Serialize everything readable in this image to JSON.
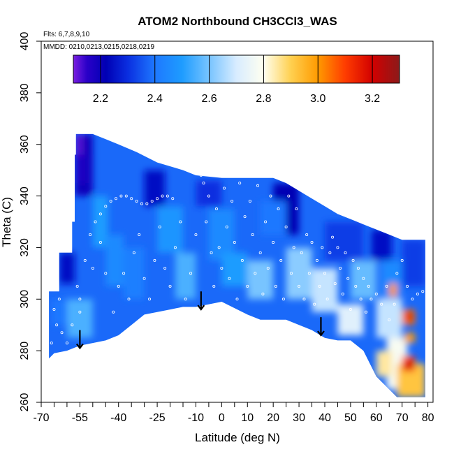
{
  "chart_data": {
    "type": "heatmap",
    "title": "ATOM2 Northbound CH3CCl3_WAS",
    "flights_label": "Flts: 6,7,8,9,10",
    "dates_label": "MMDD: 0210,0213,0215,0218,0219",
    "xlabel": "Latitude (deg N)",
    "ylabel": "Theta (C)",
    "xlim": [
      -70,
      82
    ],
    "ylim": [
      260,
      400
    ],
    "x_tick_labels": [
      "-70",
      "-55",
      "-40",
      "-25",
      "-10",
      "0",
      "10",
      "20",
      "30",
      "40",
      "50",
      "60",
      "70",
      "80"
    ],
    "x_tick_values": [
      -70,
      -55,
      -40,
      -25,
      -10,
      0,
      10,
      20,
      30,
      40,
      50,
      60,
      70,
      80
    ],
    "x_minor_ticks": [
      -65,
      -60,
      -50,
      -45,
      -35,
      -30,
      -20,
      -15,
      -5,
      5,
      15,
      25,
      35,
      45,
      55,
      65,
      75
    ],
    "y_tick_labels": [
      "260",
      "280",
      "300",
      "320",
      "340",
      "360",
      "380",
      "400"
    ],
    "y_tick_values": [
      260,
      280,
      300,
      320,
      340,
      360,
      380,
      400
    ],
    "colorbar": {
      "range": [
        2.1,
        3.3
      ],
      "tick_labels": [
        "2.2",
        "2.4",
        "2.6",
        "2.8",
        "3.0",
        "3.2"
      ],
      "tick_values": [
        2.2,
        2.4,
        2.6,
        2.8,
        3.0,
        3.2
      ],
      "divider_values": [
        2.2,
        2.4,
        2.6,
        2.8,
        3.0,
        3.2
      ],
      "color_stops": [
        {
          "v": 2.1,
          "c": "#7a1fe0"
        },
        {
          "v": 2.15,
          "c": "#2a00c8"
        },
        {
          "v": 2.22,
          "c": "#0000b4"
        },
        {
          "v": 2.3,
          "c": "#0a2ee0"
        },
        {
          "v": 2.4,
          "c": "#1e78ff"
        },
        {
          "v": 2.5,
          "c": "#1e9cff"
        },
        {
          "v": 2.6,
          "c": "#78c4ff"
        },
        {
          "v": 2.7,
          "c": "#d8ecff"
        },
        {
          "v": 2.8,
          "c": "#fffff0"
        },
        {
          "v": 2.9,
          "c": "#ffd050"
        },
        {
          "v": 3.0,
          "c": "#ff9a00"
        },
        {
          "v": 3.1,
          "c": "#ff3c00"
        },
        {
          "v": 3.2,
          "c": "#d20000"
        },
        {
          "v": 3.3,
          "c": "#8c1a1a"
        }
      ]
    },
    "field_boundary": {
      "top": [
        [
          -56.5,
          364
        ],
        [
          -50,
          364
        ],
        [
          -45,
          362
        ],
        [
          -40,
          360
        ],
        [
          -33,
          357
        ],
        [
          -25,
          353
        ],
        [
          -15,
          350
        ],
        [
          -10,
          348
        ],
        [
          0,
          347
        ],
        [
          10,
          347
        ],
        [
          20,
          347
        ],
        [
          25,
          345
        ],
        [
          30,
          342
        ],
        [
          35,
          339
        ],
        [
          40,
          336
        ],
        [
          45,
          333
        ],
        [
          50,
          331
        ],
        [
          55,
          329
        ],
        [
          60,
          327
        ],
        [
          65,
          325
        ],
        [
          70,
          323
        ],
        [
          77,
          323
        ],
        [
          79,
          323
        ]
      ],
      "bottom": [
        [
          79,
          262
        ],
        [
          74,
          262
        ],
        [
          68,
          262
        ],
        [
          60,
          270
        ],
        [
          55,
          280
        ],
        [
          50,
          284
        ],
        [
          45,
          284
        ],
        [
          40,
          285
        ],
        [
          35,
          288
        ],
        [
          30,
          290
        ],
        [
          25,
          292
        ],
        [
          15,
          292
        ],
        [
          10,
          294
        ],
        [
          0,
          299
        ],
        [
          -10,
          297
        ],
        [
          -15,
          297
        ],
        [
          -20,
          296
        ],
        [
          -25,
          295
        ],
        [
          -30,
          294
        ],
        [
          -35,
          290
        ],
        [
          -40,
          286
        ],
        [
          -45,
          284
        ],
        [
          -50,
          283
        ],
        [
          -55,
          282
        ],
        [
          -60,
          280
        ],
        [
          -65,
          279
        ],
        [
          -67,
          277
        ]
      ],
      "left_steps": [
        [
          -67,
          277
        ],
        [
          -67,
          303
        ],
        [
          -63,
          303
        ],
        [
          -63,
          318
        ],
        [
          -58,
          318
        ],
        [
          -58,
          330
        ],
        [
          -57,
          330
        ],
        [
          -57,
          356
        ],
        [
          -56.5,
          356
        ],
        [
          -56.5,
          364
        ]
      ]
    },
    "value_patches": [
      {
        "x0": -57,
        "x1": -50,
        "y0": 340,
        "y1": 364,
        "v": 2.2
      },
      {
        "x0": -56.5,
        "x1": -54,
        "y0": 355,
        "y1": 364,
        "v": 2.12
      },
      {
        "x0": -57,
        "x1": -52,
        "y0": 345,
        "y1": 356,
        "v": 2.17
      },
      {
        "x0": -63,
        "x1": -57,
        "y0": 306,
        "y1": 318,
        "v": 2.25
      },
      {
        "x0": -50,
        "x1": -44,
        "y0": 320,
        "y1": 340,
        "v": 2.5
      },
      {
        "x0": -45,
        "x1": -38,
        "y0": 305,
        "y1": 325,
        "v": 2.45
      },
      {
        "x0": -38,
        "x1": -30,
        "y0": 300,
        "y1": 320,
        "v": 2.42
      },
      {
        "x0": -30,
        "x1": -22,
        "y0": 336,
        "y1": 350,
        "v": 2.25
      },
      {
        "x0": -25,
        "x1": -15,
        "y0": 318,
        "y1": 336,
        "v": 2.48
      },
      {
        "x0": -18,
        "x1": -10,
        "y0": 300,
        "y1": 318,
        "v": 2.55
      },
      {
        "x0": -10,
        "x1": 0,
        "y0": 336,
        "y1": 346,
        "v": 2.3
      },
      {
        "x0": -5,
        "x1": 5,
        "y0": 315,
        "y1": 335,
        "v": 2.45
      },
      {
        "x0": 0,
        "x1": 10,
        "y0": 305,
        "y1": 318,
        "v": 2.5
      },
      {
        "x0": 10,
        "x1": 20,
        "y0": 300,
        "y1": 315,
        "v": 2.6
      },
      {
        "x0": 20,
        "x1": 30,
        "y0": 325,
        "y1": 345,
        "v": 2.22
      },
      {
        "x0": 25,
        "x1": 35,
        "y0": 300,
        "y1": 320,
        "v": 2.62
      },
      {
        "x0": 35,
        "x1": 45,
        "y0": 295,
        "y1": 312,
        "v": 2.68
      },
      {
        "x0": 40,
        "x1": 55,
        "y0": 315,
        "y1": 330,
        "v": 2.32
      },
      {
        "x0": 50,
        "x1": 60,
        "y0": 300,
        "y1": 315,
        "v": 2.58
      },
      {
        "x0": 58,
        "x1": 66,
        "y0": 315,
        "y1": 327,
        "v": 2.25
      },
      {
        "x0": 62,
        "x1": 70,
        "y0": 300,
        "y1": 315,
        "v": 2.45
      },
      {
        "x0": 70,
        "x1": 79,
        "y0": 305,
        "y1": 323,
        "v": 2.32
      },
      {
        "x0": 60,
        "x1": 70,
        "y0": 285,
        "y1": 300,
        "v": 2.68
      },
      {
        "x0": 64,
        "x1": 72,
        "y0": 265,
        "y1": 285,
        "v": 2.78
      },
      {
        "x0": 68,
        "x1": 79,
        "y0": 262,
        "y1": 275,
        "v": 2.92
      },
      {
        "x0": 60,
        "x1": 66,
        "y0": 270,
        "y1": 280,
        "v": 2.85
      },
      {
        "x0": 65,
        "x1": 68,
        "y0": 301,
        "y1": 306,
        "v": 3.0
      },
      {
        "x0": 70,
        "x1": 75,
        "y0": 290,
        "y1": 296,
        "v": 3.05
      },
      {
        "x0": 71,
        "x1": 74,
        "y0": 292,
        "y1": 294.5,
        "v": 3.2
      },
      {
        "x0": 71,
        "x1": 75,
        "y0": 283,
        "y1": 287,
        "v": 3.0
      },
      {
        "x0": 70,
        "x1": 75,
        "y0": 272,
        "y1": 278,
        "v": 3.1
      },
      {
        "x0": 71,
        "x1": 74,
        "y0": 273,
        "y1": 276,
        "v": 3.22
      },
      {
        "x0": -60,
        "x1": -50,
        "y0": 285,
        "y1": 300,
        "v": 2.55
      },
      {
        "x0": -66,
        "x1": -60,
        "y0": 290,
        "y1": 300,
        "v": 2.4
      },
      {
        "x0": 45,
        "x1": 55,
        "y0": 286,
        "y1": 298,
        "v": 2.72
      },
      {
        "x0": 15,
        "x1": 25,
        "y0": 325,
        "y1": 338,
        "v": 2.4
      }
    ],
    "sample_points": [
      [
        -65,
        296
      ],
      [
        -64,
        290
      ],
      [
        -62,
        287
      ],
      [
        -60,
        283
      ],
      [
        -58,
        290
      ],
      [
        -56,
        305
      ],
      [
        -55,
        300
      ],
      [
        -53,
        315
      ],
      [
        -51,
        325
      ],
      [
        -49,
        330
      ],
      [
        -47,
        333
      ],
      [
        -45,
        336
      ],
      [
        -43,
        338
      ],
      [
        -41,
        339
      ],
      [
        -39,
        340
      ],
      [
        -37,
        340
      ],
      [
        -35,
        339
      ],
      [
        -33,
        338
      ],
      [
        -31,
        337
      ],
      [
        -29,
        337
      ],
      [
        -27,
        338
      ],
      [
        -25,
        339
      ],
      [
        -23,
        340
      ],
      [
        -21,
        340
      ],
      [
        -19,
        339
      ],
      [
        -40,
        305
      ],
      [
        -38,
        310
      ],
      [
        -36,
        300
      ],
      [
        -34,
        318
      ],
      [
        -32,
        325
      ],
      [
        -30,
        308
      ],
      [
        -28,
        300
      ],
      [
        -26,
        315
      ],
      [
        -24,
        328
      ],
      [
        -22,
        312
      ],
      [
        -20,
        305
      ],
      [
        -18,
        320
      ],
      [
        -16,
        330
      ],
      [
        -14,
        300
      ],
      [
        -12,
        310
      ],
      [
        -10,
        325
      ],
      [
        -8,
        348
      ],
      [
        -7,
        345
      ],
      [
        -6,
        330
      ],
      [
        -5,
        340
      ],
      [
        -4,
        318
      ],
      [
        -3,
        305
      ],
      [
        -2,
        335
      ],
      [
        -1,
        320
      ],
      [
        0,
        312
      ],
      [
        1,
        343
      ],
      [
        2,
        328
      ],
      [
        3,
        308
      ],
      [
        4,
        338
      ],
      [
        5,
        322
      ],
      [
        6,
        300
      ],
      [
        7,
        345
      ],
      [
        8,
        315
      ],
      [
        9,
        332
      ],
      [
        10,
        305
      ],
      [
        11,
        338
      ],
      [
        12,
        325
      ],
      [
        13,
        310
      ],
      [
        14,
        344
      ],
      [
        15,
        318
      ],
      [
        16,
        302
      ],
      [
        17,
        330
      ],
      [
        18,
        312
      ],
      [
        19,
        340
      ],
      [
        20,
        322
      ],
      [
        21,
        305
      ],
      [
        22,
        335
      ],
      [
        23,
        315
      ],
      [
        24,
        300
      ],
      [
        25,
        328
      ],
      [
        26,
        340
      ],
      [
        27,
        310
      ],
      [
        28,
        320
      ],
      [
        29,
        335
      ],
      [
        30,
        305
      ],
      [
        31,
        318
      ],
      [
        32,
        300
      ],
      [
        33,
        325
      ],
      [
        34,
        310
      ],
      [
        35,
        322
      ],
      [
        36,
        298
      ],
      [
        37,
        315
      ],
      [
        38,
        305
      ],
      [
        39,
        320
      ],
      [
        40,
        310
      ],
      [
        41,
        300
      ],
      [
        42,
        318
      ],
      [
        43,
        324
      ],
      [
        44,
        306
      ],
      [
        45,
        320
      ],
      [
        46,
        312
      ],
      [
        47,
        302
      ],
      [
        48,
        318
      ],
      [
        49,
        308
      ],
      [
        50,
        296
      ],
      [
        51,
        315
      ],
      [
        52,
        305
      ],
      [
        53,
        312
      ],
      [
        54,
        300
      ],
      [
        55,
        308
      ],
      [
        56,
        295
      ],
      [
        57,
        305
      ],
      [
        58,
        300
      ],
      [
        60,
        302
      ],
      [
        62,
        298
      ],
      [
        64,
        305
      ],
      [
        65,
        292
      ],
      [
        67,
        298
      ],
      [
        68,
        310
      ],
      [
        70,
        315
      ],
      [
        72,
        305
      ],
      [
        74,
        300
      ],
      [
        76,
        302
      ],
      [
        78,
        303
      ],
      [
        -45,
        310
      ],
      [
        -50,
        312
      ],
      [
        -47,
        322
      ],
      [
        -42,
        295
      ],
      [
        -55,
        295
      ],
      [
        -66,
        283
      ],
      [
        -63,
        300
      ]
    ],
    "arrows": [
      {
        "x": -55,
        "y_top": 288,
        "y_bottom": 281
      },
      {
        "x": -8,
        "y_top": 303,
        "y_bottom": 296
      },
      {
        "x": 38.5,
        "y_top": 293,
        "y_bottom": 286
      }
    ]
  }
}
